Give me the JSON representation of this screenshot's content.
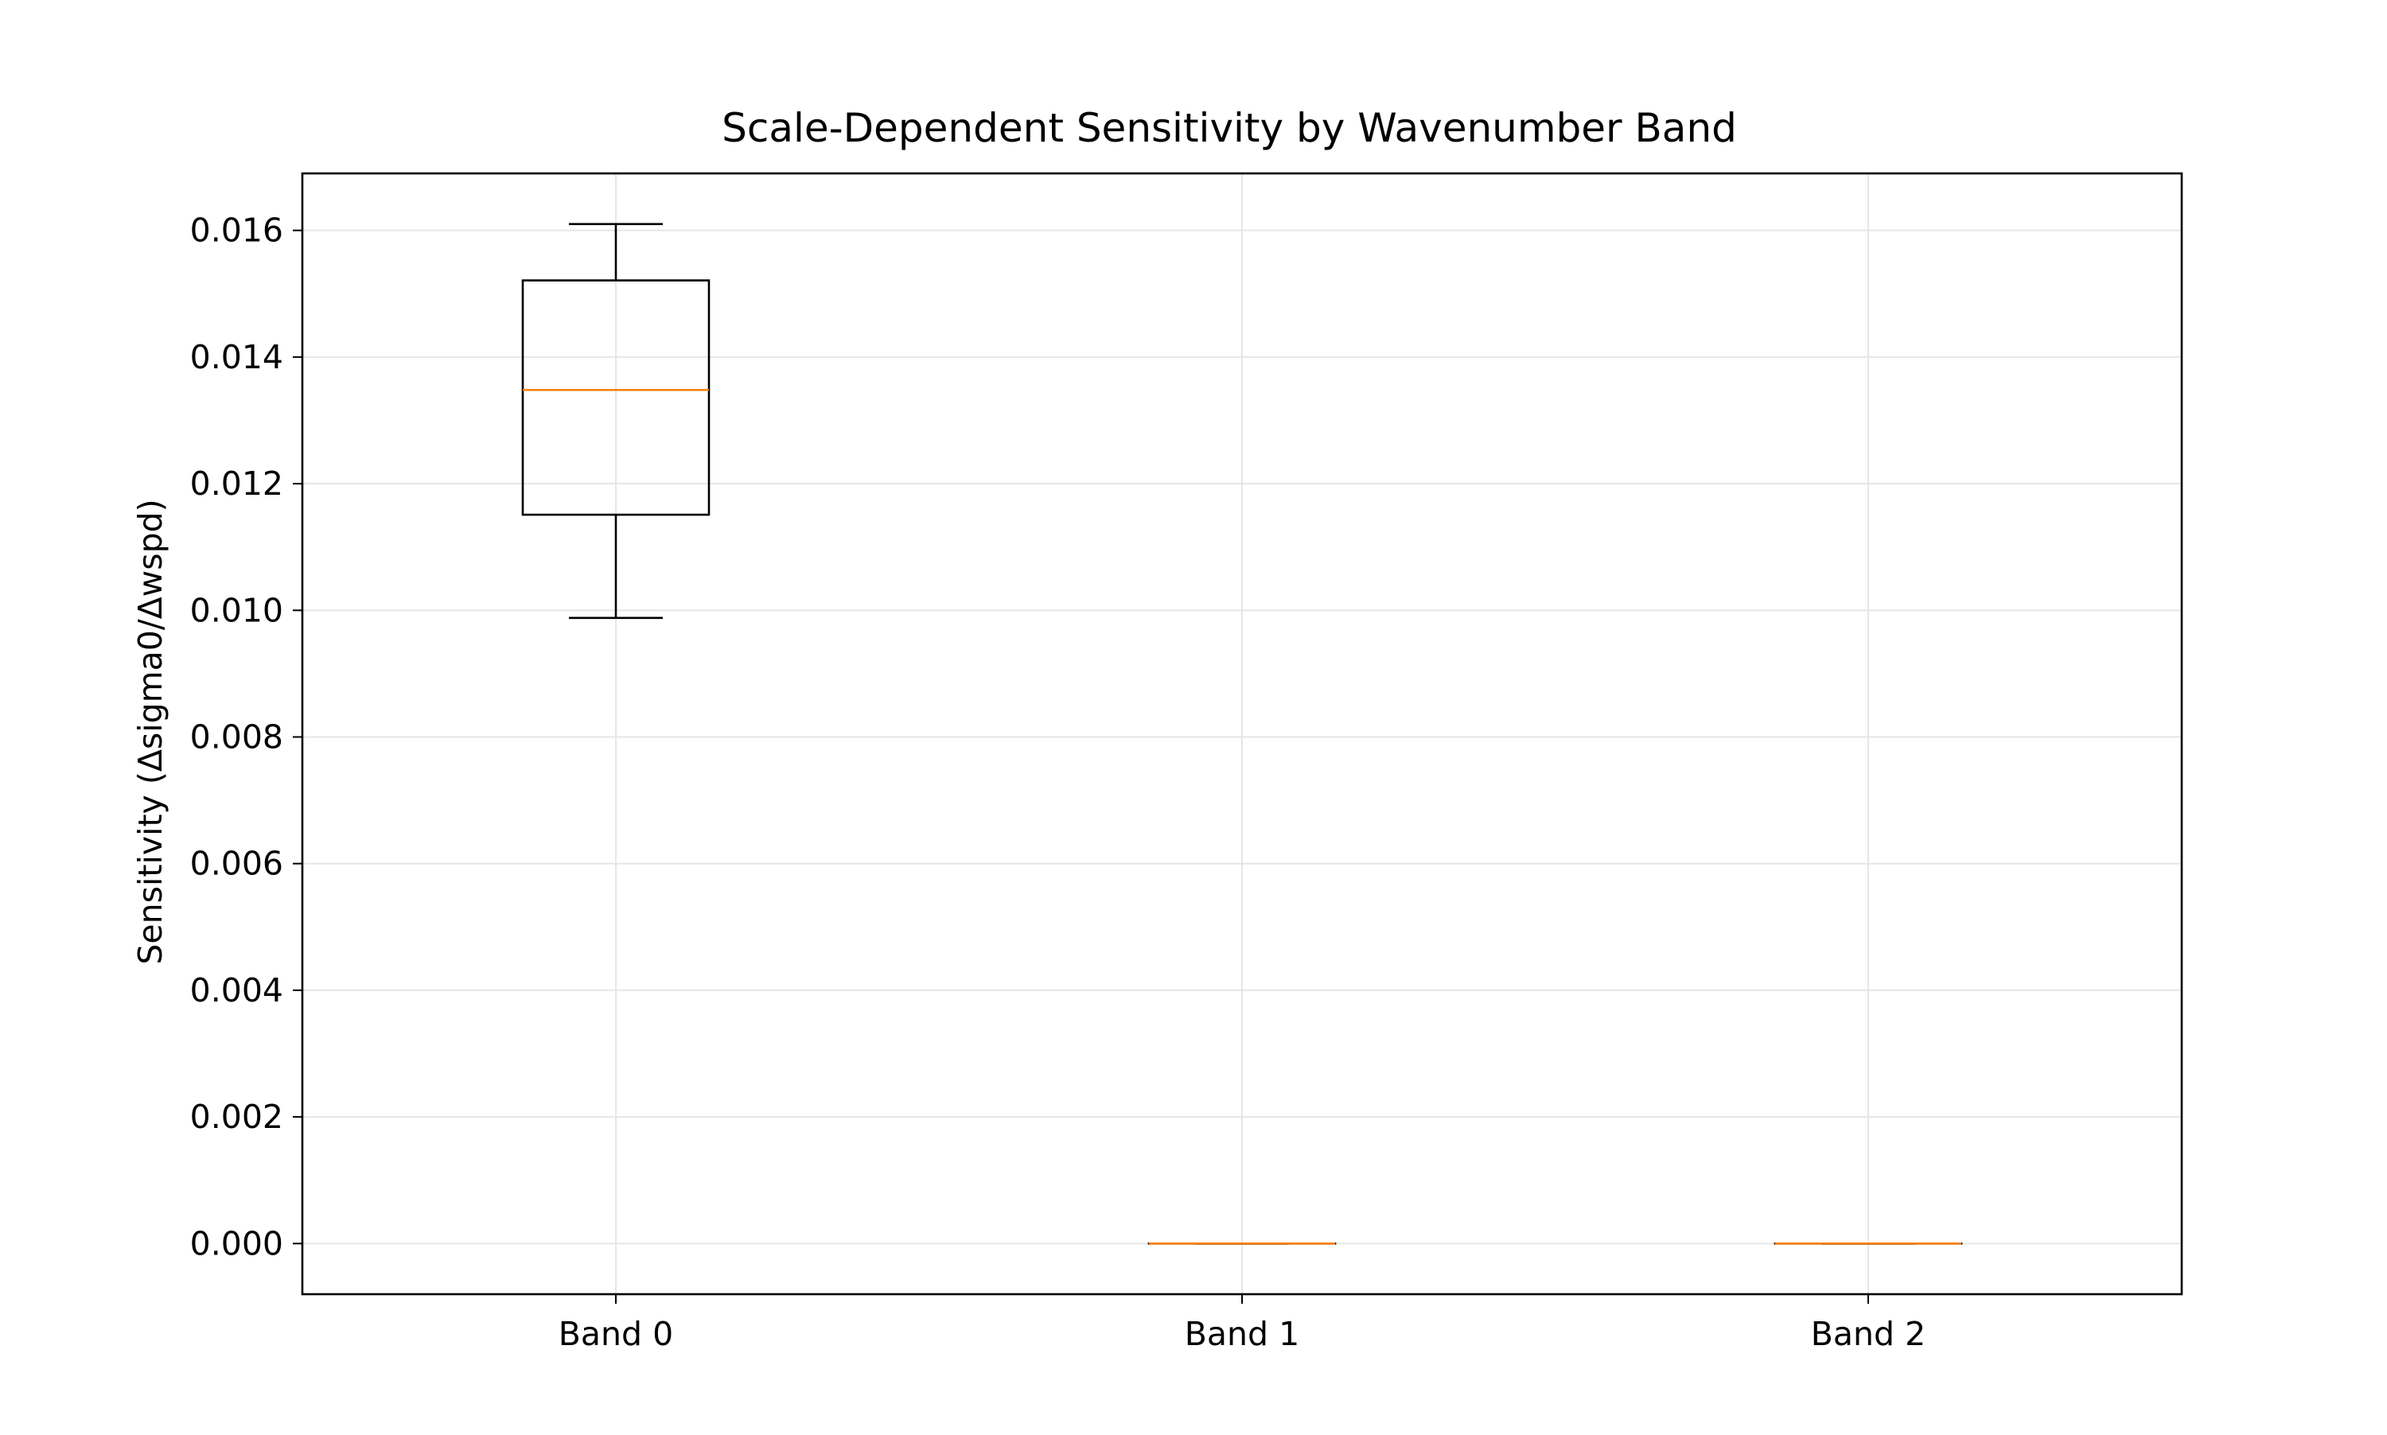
{
  "chart_data": {
    "type": "box",
    "title": "Scale-Dependent Sensitivity by Wavenumber Band",
    "xlabel": "",
    "ylabel": "Sensitivity (Δsigma0/Δwspd)",
    "categories": [
      "Band 0",
      "Band 1",
      "Band 2"
    ],
    "boxes": [
      {
        "category": "Band 0",
        "whisker_low": 0.00988,
        "q1": 0.01151,
        "median": 0.01348,
        "q3": 0.01521,
        "whisker_high": 0.0161
      },
      {
        "category": "Band 1",
        "whisker_low": 0.0,
        "q1": 0.0,
        "median": 0.0,
        "q3": 0.0,
        "whisker_high": 0.0
      },
      {
        "category": "Band 2",
        "whisker_low": 0.0,
        "q1": 0.0,
        "median": 0.0,
        "q3": 0.0,
        "whisker_high": 0.0
      }
    ],
    "ylim": [
      -0.0008,
      0.0169
    ],
    "yticks": [
      0.0,
      0.002,
      0.004,
      0.006,
      0.008,
      0.01,
      0.012,
      0.014,
      0.016
    ],
    "ytick_labels": [
      "0.000",
      "0.002",
      "0.004",
      "0.006",
      "0.008",
      "0.010",
      "0.012",
      "0.014",
      "0.016"
    ],
    "grid": true,
    "colors": {
      "box": "#000000",
      "median": "#ff7f0e",
      "grid": "#e6e6e6"
    }
  }
}
